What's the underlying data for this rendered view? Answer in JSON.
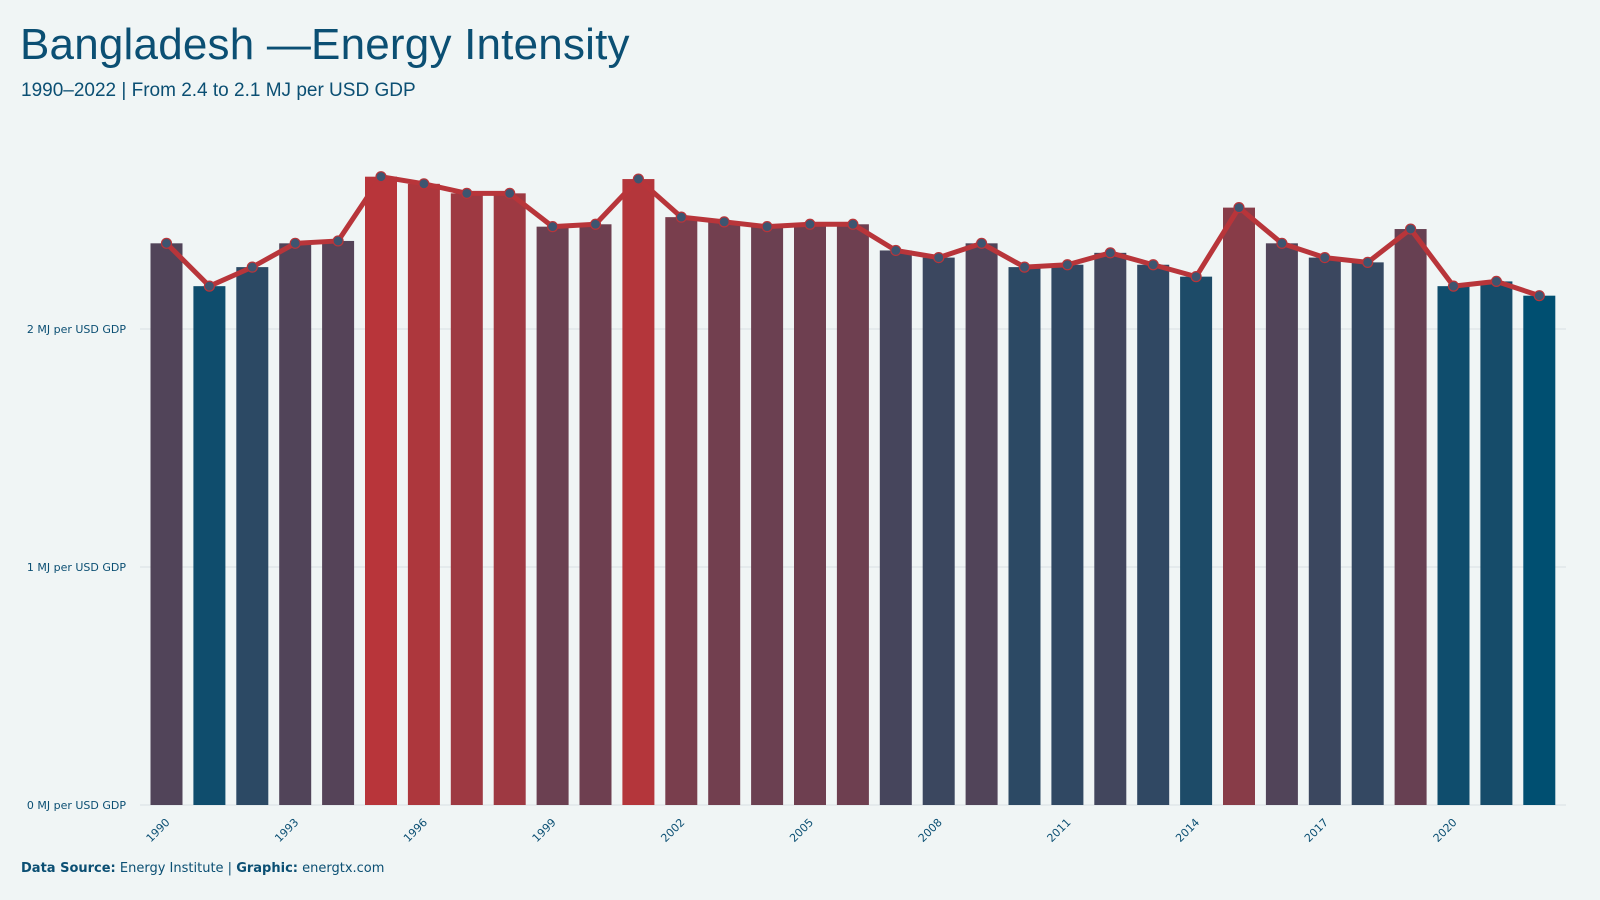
{
  "header": {
    "title": "Bangladesh  —Energy Intensity",
    "subtitle": "1990–2022 | From 2.4 to 2.1 MJ per USD GDP"
  },
  "footer": {
    "source_label": "Data Source:",
    "source_value": "Energy Institute |",
    "graphic_label": "Graphic:",
    "graphic_value": "energtx.com"
  },
  "colors": {
    "high": "#b8353a",
    "low": "#004f71",
    "line": "#b8353a",
    "marker": "#3d5570",
    "grid": "#d9dfe2",
    "text": "#0b4f73"
  },
  "chart_data": {
    "type": "bar",
    "title": "Bangladesh  —Energy Intensity",
    "subtitle": "1990–2022 | From 2.4 to 2.1 MJ per USD GDP",
    "x": [
      1990,
      1991,
      1992,
      1993,
      1994,
      1995,
      1996,
      1997,
      1998,
      1999,
      2000,
      2001,
      2002,
      2003,
      2004,
      2005,
      2006,
      2007,
      2008,
      2009,
      2010,
      2011,
      2012,
      2013,
      2014,
      2015,
      2016,
      2017,
      2018,
      2019,
      2020,
      2021,
      2022
    ],
    "values": [
      2.36,
      2.18,
      2.26,
      2.36,
      2.37,
      2.64,
      2.61,
      2.57,
      2.57,
      2.43,
      2.44,
      2.63,
      2.47,
      2.45,
      2.43,
      2.44,
      2.44,
      2.33,
      2.3,
      2.36,
      2.26,
      2.27,
      2.32,
      2.27,
      2.22,
      2.51,
      2.36,
      2.3,
      2.28,
      2.42,
      2.18,
      2.2,
      2.14
    ],
    "overlay": "line with markers",
    "xticks": [
      1990,
      1993,
      1996,
      1999,
      2002,
      2005,
      2008,
      2011,
      2014,
      2017,
      2020
    ],
    "yticks": [
      0,
      1,
      2
    ],
    "ytick_labels": [
      "0 MJ per USD GDP",
      "1 MJ per USD GDP",
      "2 MJ per USD GDP"
    ],
    "ylim": [
      0,
      2.85
    ],
    "grid": true,
    "legend": false
  }
}
